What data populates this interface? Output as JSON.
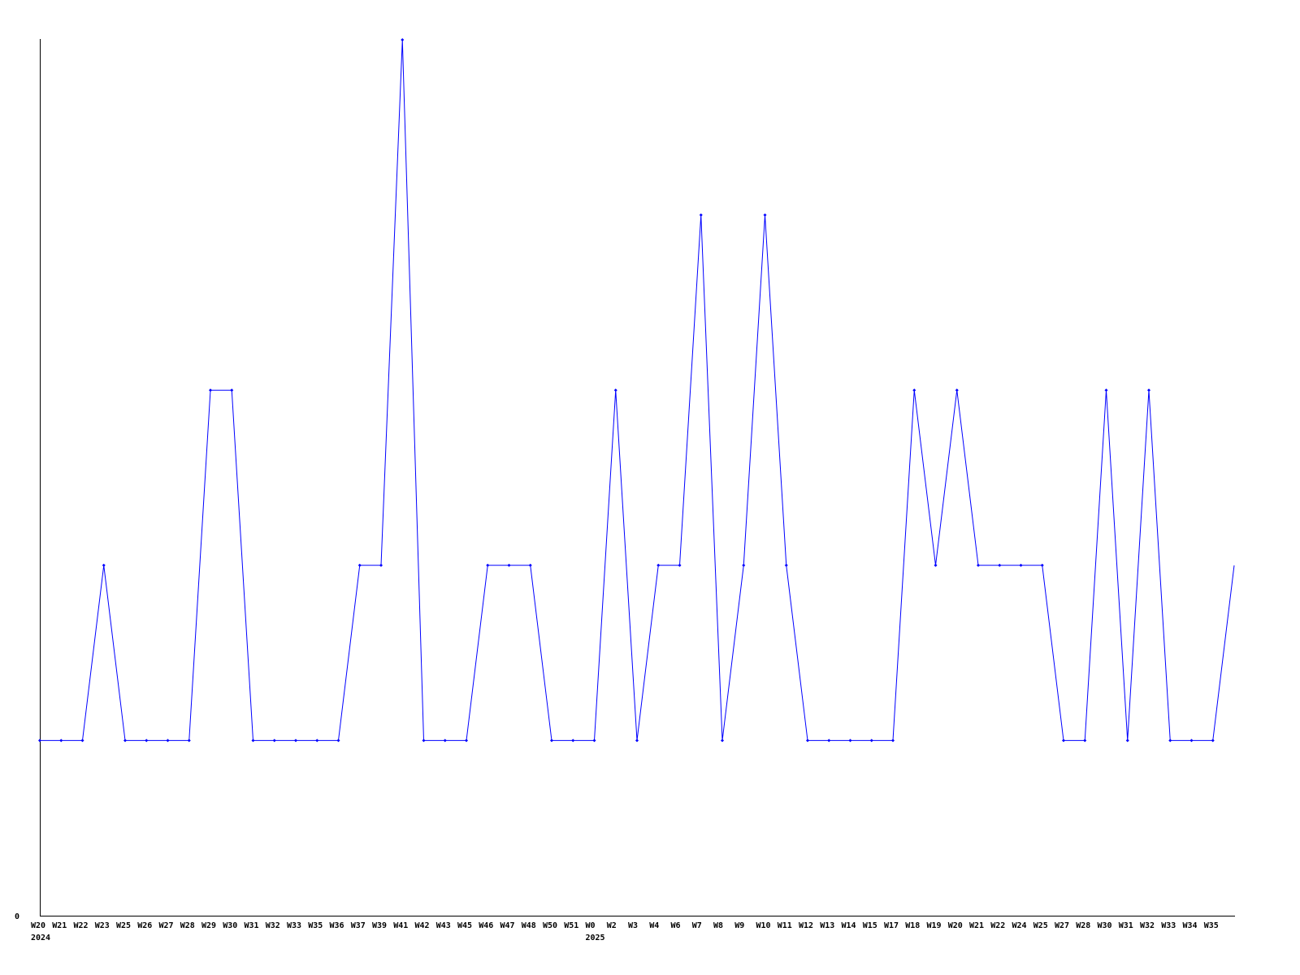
{
  "chart_data": {
    "type": "line",
    "title": "",
    "xlabel": "",
    "ylabel": "",
    "categories": [
      "W20",
      "W21",
      "W22",
      "W23",
      "W25",
      "W26",
      "W27",
      "W28",
      "W29",
      "W30",
      "W31",
      "W32",
      "W33",
      "W35",
      "W36",
      "W37",
      "W39",
      "W41",
      "W42",
      "W43",
      "W45",
      "W46",
      "W47",
      "W48",
      "W50",
      "W51",
      "W0",
      "W2",
      "W3",
      "W4",
      "W6",
      "W7",
      "W8",
      "W9",
      "W10",
      "W11",
      "W12",
      "W13",
      "W14",
      "W15",
      "W17",
      "W18",
      "W19",
      "W20",
      "W21",
      "W22",
      "W24",
      "W25",
      "W27",
      "W28",
      "W30",
      "W31",
      "W32",
      "W33",
      "W34",
      "W35",
      ""
    ],
    "year_labels": [
      {
        "index": 0,
        "label": "2024"
      },
      {
        "index": 26,
        "label": "2025"
      }
    ],
    "values": [
      1,
      1,
      1,
      2,
      1,
      1,
      1,
      1,
      3,
      3,
      1,
      1,
      1,
      1,
      1,
      2,
      2,
      5,
      1,
      1,
      1,
      2,
      2,
      2,
      1,
      1,
      1,
      3,
      1,
      2,
      2,
      4,
      1,
      2,
      4,
      2,
      1,
      1,
      1,
      1,
      1,
      3,
      2,
      3,
      2,
      2,
      2,
      2,
      1,
      1,
      3,
      1,
      3,
      1,
      1,
      1,
      2
    ],
    "ylim": [
      0,
      5
    ],
    "y_tick_labels": [
      "0"
    ],
    "grid": false,
    "line_color": "#0000ff",
    "axis_color": "#000000"
  }
}
